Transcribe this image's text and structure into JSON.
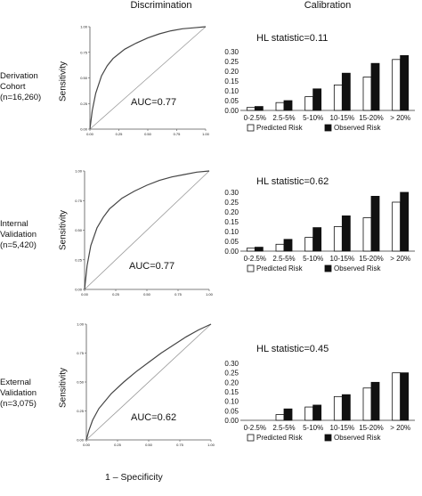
{
  "headers": {
    "left": "Discrimination",
    "right": "Calibration"
  },
  "footer": "1 – Specificity",
  "colors": {
    "predicted": "#ffffff",
    "observed": "#111111",
    "roc": "#444444",
    "diagonal": "#999999"
  },
  "rows": [
    {
      "label": [
        "Derivation",
        "Cohort",
        "(n=16,260)"
      ]
    },
    {
      "label": [
        "Internal",
        "Validation",
        "(n=5,420)"
      ]
    },
    {
      "label": [
        "External",
        "Validation",
        "(n=3,075)"
      ]
    }
  ],
  "chart_data": [
    {
      "type": "line",
      "panel": "roc-derivation",
      "ylabel": "Sensitivity",
      "xlabel": "1 – Specificity",
      "annotation": "AUC=0.77",
      "xticks": [
        "0.00",
        "0.25",
        "0.50",
        "0.75",
        "1.00"
      ],
      "yticks": [
        "0.00",
        "0.25",
        "0.50",
        "0.75",
        "1.00"
      ],
      "xlim": [
        0,
        1
      ],
      "ylim": [
        0,
        1
      ],
      "diagonal": true,
      "x": [
        0,
        0.02,
        0.05,
        0.1,
        0.15,
        0.2,
        0.3,
        0.4,
        0.5,
        0.6,
        0.7,
        0.8,
        0.9,
        1
      ],
      "y": [
        0,
        0.18,
        0.35,
        0.52,
        0.62,
        0.69,
        0.78,
        0.84,
        0.89,
        0.93,
        0.96,
        0.98,
        0.99,
        1
      ]
    },
    {
      "type": "bar",
      "panel": "cal-derivation",
      "title": "HL statistic=0.11",
      "categories": [
        "0-2.5%",
        "2.5-5%",
        "5-10%",
        "10-15%",
        "15-20%",
        "> 20%"
      ],
      "series": [
        {
          "name": "Predicted Risk",
          "values": [
            0.015,
            0.04,
            0.07,
            0.13,
            0.17,
            0.26
          ]
        },
        {
          "name": "Observed Risk",
          "values": [
            0.02,
            0.05,
            0.11,
            0.19,
            0.24,
            0.28
          ]
        }
      ],
      "yticks": [
        "0.00",
        "0.05",
        "0.10",
        "0.15",
        "0.20",
        "0.25",
        "0.30"
      ],
      "ylim": [
        0,
        0.3
      ],
      "legend": "bottom"
    },
    {
      "type": "line",
      "panel": "roc-internal",
      "ylabel": "Sensitivity",
      "xlabel": "1 – Specificity",
      "annotation": "AUC=0.77",
      "xticks": [
        "0.00",
        "0.25",
        "0.50",
        "0.75",
        "1.00"
      ],
      "yticks": [
        "0.00",
        "0.25",
        "0.50",
        "0.75",
        "1.00"
      ],
      "xlim": [
        0,
        1
      ],
      "ylim": [
        0,
        1
      ],
      "diagonal": true,
      "x": [
        0,
        0.02,
        0.05,
        0.1,
        0.15,
        0.2,
        0.3,
        0.4,
        0.5,
        0.6,
        0.7,
        0.8,
        0.9,
        1
      ],
      "y": [
        0,
        0.2,
        0.37,
        0.52,
        0.61,
        0.68,
        0.77,
        0.83,
        0.88,
        0.92,
        0.95,
        0.97,
        0.99,
        1
      ]
    },
    {
      "type": "bar",
      "panel": "cal-internal",
      "title": "HL statistic=0.62",
      "categories": [
        "0-2.5%",
        "2.5-5%",
        "5-10%",
        "10-15%",
        "15-20%",
        "> 20%"
      ],
      "series": [
        {
          "name": "Predicted Risk",
          "values": [
            0.015,
            0.035,
            0.07,
            0.125,
            0.17,
            0.25
          ]
        },
        {
          "name": "Observed Risk",
          "values": [
            0.02,
            0.06,
            0.12,
            0.18,
            0.28,
            0.3
          ]
        }
      ],
      "yticks": [
        "0.00",
        "0.05",
        "0.10",
        "0.15",
        "0.20",
        "0.25",
        "0.30"
      ],
      "ylim": [
        0,
        0.3
      ],
      "legend": "bottom"
    },
    {
      "type": "line",
      "panel": "roc-external",
      "ylabel": "Sensitivity",
      "xlabel": "1 – Specificity",
      "annotation": "AUC=0.62",
      "xticks": [
        "0.00",
        "0.25",
        "0.50",
        "0.75",
        "1.00"
      ],
      "yticks": [
        "0.00",
        "0.25",
        "0.50",
        "0.75",
        "1.00"
      ],
      "xlim": [
        0,
        1
      ],
      "ylim": [
        0,
        1
      ],
      "diagonal": true,
      "x": [
        0,
        0.02,
        0.05,
        0.1,
        0.2,
        0.3,
        0.4,
        0.5,
        0.6,
        0.7,
        0.8,
        0.9,
        1
      ],
      "y": [
        0,
        0.08,
        0.17,
        0.27,
        0.4,
        0.5,
        0.59,
        0.67,
        0.75,
        0.82,
        0.89,
        0.95,
        1
      ]
    },
    {
      "type": "bar",
      "panel": "cal-external",
      "title": "HL statistic=0.45",
      "categories": [
        "0-2.5%",
        "2.5-5%",
        "5-10%",
        "10-15%",
        "15-20%",
        "> 20%"
      ],
      "series": [
        {
          "name": "Predicted Risk",
          "values": [
            0,
            0.03,
            0.07,
            0.125,
            0.17,
            0.25
          ]
        },
        {
          "name": "Observed Risk",
          "values": [
            0,
            0.06,
            0.08,
            0.135,
            0.2,
            0.25
          ]
        }
      ],
      "yticks": [
        "0.00",
        "0.05",
        "0.10",
        "0.15",
        "0.20",
        "0.25",
        "0.30"
      ],
      "ylim": [
        0,
        0.3
      ],
      "legend": "bottom"
    }
  ]
}
